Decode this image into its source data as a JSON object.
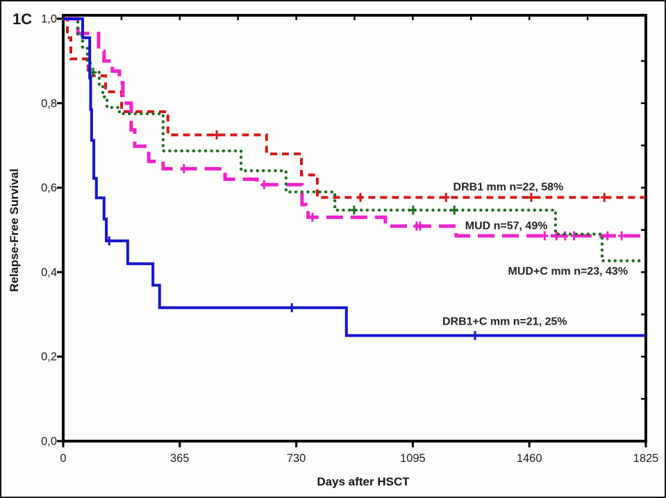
{
  "panel_label": "1C",
  "chart_data": {
    "type": "line",
    "chart_style": "kaplan-meier-step",
    "title": "",
    "xlabel": "Days after HSCT",
    "ylabel": "Relapse-Free Survival",
    "xlim": [
      0,
      1825
    ],
    "ylim": [
      0.0,
      1.0
    ],
    "grid": false,
    "legend_position": "inline-labels",
    "axis_color": "#000000",
    "text_color": "#1c1c1c",
    "x_ticks": [
      {
        "value": 0,
        "label": "0"
      },
      {
        "value": 365,
        "label": "365"
      },
      {
        "value": 730,
        "label": "730"
      },
      {
        "value": 1095,
        "label": "1095"
      },
      {
        "value": 1460,
        "label": "1460"
      },
      {
        "value": 1825,
        "label": "1825"
      }
    ],
    "y_ticks": [
      {
        "value": 0.0,
        "label": "0,0"
      },
      {
        "value": 0.2,
        "label": "0,2"
      },
      {
        "value": 0.4,
        "label": "0,4"
      },
      {
        "value": 0.6,
        "label": "0,6"
      },
      {
        "value": 0.8,
        "label": "0,8"
      },
      {
        "value": 1.0,
        "label": "1,0"
      }
    ],
    "minor_tick_step_top_days": 182.5,
    "minor_tick_step_right": 0.1,
    "series": [
      {
        "name": "DRB1 mm",
        "label": "DRB1 mm n=22, 58%",
        "n": 22,
        "final_percent": 58,
        "color": "#d81414",
        "line_style": "dashed",
        "label_anchor": {
          "day": 1394,
          "survival": 0.594
        },
        "steps": [
          [
            0,
            1.0
          ],
          [
            13,
            0.955
          ],
          [
            24,
            0.905
          ],
          [
            78,
            0.865
          ],
          [
            133,
            0.827
          ],
          [
            183,
            0.78
          ],
          [
            328,
            0.725
          ],
          [
            637,
            0.68
          ],
          [
            746,
            0.63
          ],
          [
            796,
            0.577
          ],
          [
            1825,
            0.577
          ]
        ],
        "censor_marks": [
          [
            481,
            0.725
          ],
          [
            931,
            0.577
          ],
          [
            1199,
            0.577
          ],
          [
            1466,
            0.577
          ],
          [
            1695,
            0.577
          ]
        ]
      },
      {
        "name": "MUD",
        "label": "MUD n=57, 49%",
        "n": 57,
        "final_percent": 49,
        "color": "#ee22cc",
        "line_style": "long-dash",
        "label_anchor": {
          "day": 1388,
          "survival": 0.502
        },
        "steps": [
          [
            0,
            1.0
          ],
          [
            46,
            0.965
          ],
          [
            111,
            0.923
          ],
          [
            128,
            0.9
          ],
          [
            154,
            0.876
          ],
          [
            176,
            0.848
          ],
          [
            187,
            0.814
          ],
          [
            198,
            0.8
          ],
          [
            213,
            0.737
          ],
          [
            224,
            0.698
          ],
          [
            268,
            0.662
          ],
          [
            313,
            0.645
          ],
          [
            507,
            0.62
          ],
          [
            607,
            0.607
          ],
          [
            748,
            0.56
          ],
          [
            760,
            0.545
          ],
          [
            767,
            0.53
          ],
          [
            1009,
            0.509
          ],
          [
            1231,
            0.486
          ],
          [
            1825,
            0.486
          ]
        ],
        "censor_marks": [
          [
            378,
            0.645
          ],
          [
            629,
            0.607
          ],
          [
            781,
            0.53
          ],
          [
            1107,
            0.509
          ],
          [
            1118,
            0.509
          ],
          [
            1508,
            0.486
          ],
          [
            1545,
            0.486
          ],
          [
            1572,
            0.486
          ],
          [
            1600,
            0.486
          ],
          [
            1705,
            0.486
          ],
          [
            1749,
            0.486
          ]
        ]
      },
      {
        "name": "MUD+C mm",
        "label": "MUD+C mm n=23, 43%",
        "n": 23,
        "final_percent": 43,
        "color": "#1c6e1c",
        "line_style": "dotted",
        "label_anchor": {
          "day": 1581,
          "survival": 0.394
        },
        "steps": [
          [
            0,
            1.0
          ],
          [
            46,
            0.96
          ],
          [
            61,
            0.93
          ],
          [
            76,
            0.9
          ],
          [
            85,
            0.873
          ],
          [
            113,
            0.845
          ],
          [
            124,
            0.815
          ],
          [
            137,
            0.79
          ],
          [
            176,
            0.775
          ],
          [
            313,
            0.687
          ],
          [
            557,
            0.64
          ],
          [
            698,
            0.59
          ],
          [
            851,
            0.547
          ],
          [
            1542,
            0.49
          ],
          [
            1688,
            0.427
          ],
          [
            1812,
            0.427
          ]
        ],
        "censor_marks": [
          [
            94,
            0.873
          ],
          [
            911,
            0.547
          ],
          [
            1096,
            0.547
          ],
          [
            1225,
            0.547
          ]
        ]
      },
      {
        "name": "DRB1+C mm",
        "label": "DRB1+C mm n=21, 25%",
        "n": 21,
        "final_percent": 25,
        "color": "#1414cc",
        "line_style": "solid",
        "label_anchor": {
          "day": 1383,
          "survival": 0.275
        },
        "steps": [
          [
            0,
            1.0
          ],
          [
            61,
            0.955
          ],
          [
            83,
            0.86
          ],
          [
            86,
            0.785
          ],
          [
            89,
            0.712
          ],
          [
            96,
            0.622
          ],
          [
            104,
            0.576
          ],
          [
            128,
            0.526
          ],
          [
            135,
            0.474
          ],
          [
            202,
            0.42
          ],
          [
            281,
            0.369
          ],
          [
            302,
            0.316
          ],
          [
            887,
            0.25
          ],
          [
            1825,
            0.25
          ]
        ],
        "censor_marks": [
          [
            144,
            0.474
          ],
          [
            716,
            0.316
          ],
          [
            1290,
            0.25
          ]
        ]
      }
    ]
  }
}
